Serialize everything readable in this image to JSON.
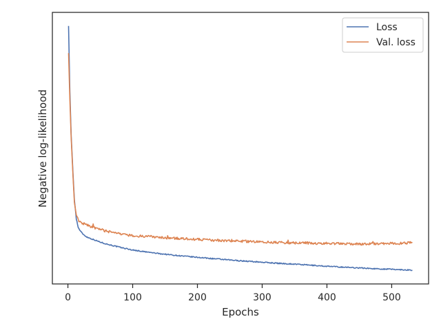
{
  "chart_data": {
    "type": "line",
    "title": "",
    "xlabel": "Epochs",
    "ylabel": "Negative log-likelihood",
    "xlim": [
      -24,
      557
    ],
    "ylim": [
      0.0,
      1.0
    ],
    "xticks": [
      0,
      100,
      200,
      300,
      400,
      500
    ],
    "yticks_shown": false,
    "grid": false,
    "legend": {
      "placement": "top-right"
    },
    "series": [
      {
        "name": "Loss",
        "color": "#4c72b0",
        "points": [
          [
            1,
            0.95
          ],
          [
            3,
            0.71
          ],
          [
            5,
            0.55
          ],
          [
            8,
            0.4
          ],
          [
            10,
            0.31
          ],
          [
            13,
            0.24
          ],
          [
            16,
            0.207
          ],
          [
            20,
            0.192
          ],
          [
            25,
            0.18
          ],
          [
            30,
            0.172
          ],
          [
            40,
            0.163
          ],
          [
            50,
            0.154
          ],
          [
            60,
            0.147
          ],
          [
            70,
            0.141
          ],
          [
            80,
            0.135
          ],
          [
            90,
            0.13
          ],
          [
            100,
            0.125
          ],
          [
            120,
            0.118
          ],
          [
            140,
            0.112
          ],
          [
            160,
            0.107
          ],
          [
            180,
            0.102
          ],
          [
            200,
            0.098
          ],
          [
            225,
            0.093
          ],
          [
            250,
            0.088
          ],
          [
            275,
            0.084
          ],
          [
            300,
            0.08
          ],
          [
            325,
            0.076
          ],
          [
            350,
            0.073
          ],
          [
            375,
            0.069
          ],
          [
            400,
            0.065
          ],
          [
            425,
            0.062
          ],
          [
            450,
            0.059
          ],
          [
            475,
            0.056
          ],
          [
            500,
            0.054
          ],
          [
            520,
            0.052
          ],
          [
            532,
            0.051
          ]
        ]
      },
      {
        "name": "Val. loss",
        "color": "#dd8452",
        "points": [
          [
            1,
            0.85
          ],
          [
            3,
            0.68
          ],
          [
            5,
            0.54
          ],
          [
            8,
            0.39
          ],
          [
            10,
            0.3
          ],
          [
            13,
            0.254
          ],
          [
            16,
            0.235
          ],
          [
            20,
            0.225
          ],
          [
            30,
            0.216
          ],
          [
            40,
            0.208
          ],
          [
            50,
            0.2
          ],
          [
            60,
            0.194
          ],
          [
            70,
            0.189
          ],
          [
            80,
            0.184
          ],
          [
            100,
            0.178
          ],
          [
            125,
            0.174
          ],
          [
            150,
            0.17
          ],
          [
            175,
            0.167
          ],
          [
            200,
            0.164
          ],
          [
            225,
            0.161
          ],
          [
            250,
            0.159
          ],
          [
            275,
            0.157
          ],
          [
            300,
            0.155
          ],
          [
            325,
            0.153
          ],
          [
            350,
            0.151
          ],
          [
            375,
            0.15
          ],
          [
            400,
            0.149
          ],
          [
            425,
            0.148
          ],
          [
            450,
            0.147
          ],
          [
            475,
            0.148
          ],
          [
            500,
            0.149
          ],
          [
            520,
            0.15
          ],
          [
            532,
            0.152
          ]
        ]
      }
    ]
  }
}
